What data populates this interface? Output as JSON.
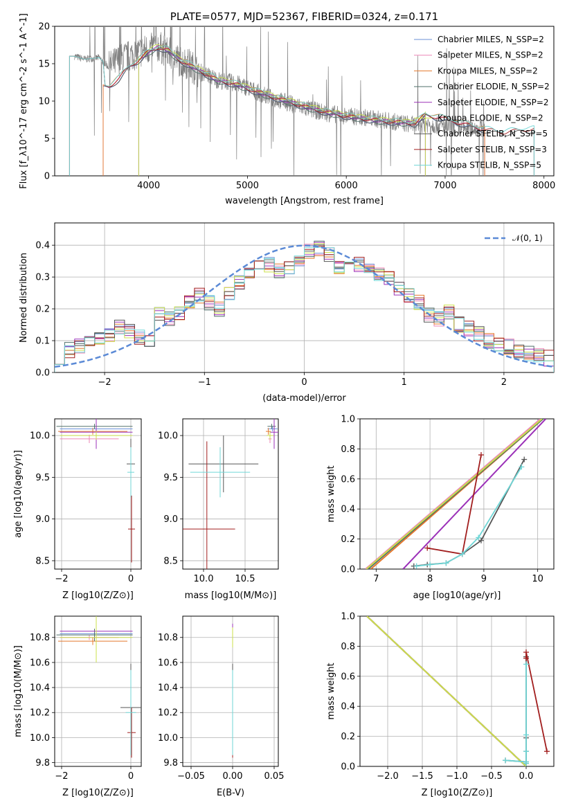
{
  "colors": {
    "chabrier_miles": "#6a8fd6",
    "salpeter_miles": "#ec86b6",
    "kroupa_miles": "#e4782c",
    "chabrier_elodie": "#4f6f6a",
    "salpeter_elodie": "#9b30b8",
    "kroupa_elodie": "#cbe04a",
    "chabrier_stelib": "#555555",
    "salpeter_stelib": "#a11d1d",
    "kroupa_stelib": "#6fd6d6",
    "data_gray": "#7f7f7f",
    "normal_curve": "#5b8ad6",
    "grid": "#b0b0b0"
  },
  "chart_data": [
    {
      "id": "spectrum",
      "type": "line",
      "title": "PLATE=0577, MJD=52367, FIBERID=0324, z=0.171",
      "xlabel": "wavelength [Angstrom, rest frame]",
      "ylabel": "Flux [f_λ10^-17 erg cm^-2 s^-1 A^-1]",
      "xlim": [
        3050,
        8100
      ],
      "ylim": [
        0,
        20
      ],
      "xticks": [
        "4000",
        "5000",
        "6000",
        "7000",
        "8000"
      ],
      "yticks": [
        "0",
        "5",
        "10",
        "15",
        "20"
      ],
      "grid": false,
      "legend_position": "top-right",
      "legend": [
        "Chabrier MILES, N_SSP=2",
        "Salpeter MILES, N_SSP=2",
        "Kroupa MILES, N_SSP=2",
        "Chabrier ELODIE, N_SSP=2",
        "Salpeter ELODIE, N_SSP=2",
        "Kroupa ELODIE, N_SSP=2",
        "Chabrier STELIB, N_SSP=5",
        "Salpeter STELIB, N_SSP=3",
        "Kroupa STELIB, N_SSP=5"
      ],
      "data_wavelength": [
        3250,
        3350,
        3500,
        3600,
        3700,
        3800,
        3900,
        4000,
        4100,
        4200,
        4300,
        4400,
        4500,
        4600,
        4700,
        4800,
        4900,
        5000,
        5200,
        5400,
        5600,
        5800,
        6000,
        6200,
        6400,
        6600,
        6700,
        6800,
        7000,
        7200,
        7400
      ],
      "data_flux": [
        16.0,
        15.6,
        15.8,
        14.5,
        15.5,
        16.0,
        16.5,
        17.0,
        17.3,
        16.5,
        15.5,
        15.0,
        14.0,
        13.5,
        12.8,
        12.6,
        12.3,
        11.8,
        10.6,
        9.8,
        9.0,
        8.4,
        8.0,
        7.8,
        7.4,
        7.0,
        6.8,
        7.0,
        6.6,
        6.4,
        6.3
      ],
      "model_wavelength": [
        3600,
        3700,
        3800,
        3900,
        4000,
        4100,
        4200,
        4300,
        4500,
        4700,
        4900,
        5000,
        5200,
        5400,
        5600,
        5800,
        6000,
        6200,
        6400,
        6600,
        6700,
        6800,
        7000,
        7200,
        7400,
        7600,
        7800
      ],
      "model_flux": [
        12.0,
        13.0,
        14.6,
        15.5,
        16.6,
        17.2,
        16.8,
        15.6,
        14.2,
        12.8,
        12.2,
        11.7,
        10.8,
        10.0,
        9.2,
        8.5,
        8.0,
        7.6,
        7.3,
        7.1,
        7.0,
        8.2,
        7.6,
        6.9,
        6.2,
        5.8,
        6.2
      ],
      "model_ranges": {
        "miles": [
          3540,
          7400
        ],
        "elodie": [
          3900,
          6800
        ],
        "stelib": [
          3200,
          7900
        ]
      }
    },
    {
      "id": "residuals",
      "type": "histogram",
      "xlabel": "(data-model)/error",
      "ylabel": "Normed distribution",
      "xlim": [
        -2.5,
        2.5
      ],
      "ylim": [
        0,
        0.47
      ],
      "xticks": [
        "−2",
        "−1",
        "0",
        "1",
        "2"
      ],
      "yticks": [
        "0.0",
        "0.1",
        "0.2",
        "0.3",
        "0.4"
      ],
      "grid": true,
      "legend_position": "top-right",
      "legend": [
        "𝒩(0, 1)"
      ],
      "bin_width": 0.1,
      "bin_start": -2.5,
      "bin_values": [
        0.05,
        0.07,
        0.08,
        0.09,
        0.1,
        0.12,
        0.14,
        0.13,
        0.11,
        0.1,
        0.18,
        0.17,
        0.19,
        0.22,
        0.24,
        0.22,
        0.2,
        0.25,
        0.28,
        0.31,
        0.33,
        0.34,
        0.32,
        0.33,
        0.36,
        0.38,
        0.39,
        0.37,
        0.33,
        0.36,
        0.34,
        0.32,
        0.31,
        0.3,
        0.26,
        0.24,
        0.22,
        0.18,
        0.17,
        0.19,
        0.15,
        0.14,
        0.12,
        0.1,
        0.09,
        0.08,
        0.07,
        0.06,
        0.05,
        0.045
      ],
      "normal_curve": {
        "mean": 0,
        "std": 1
      }
    },
    {
      "id": "age_vs_Z",
      "type": "errorbar",
      "xlabel": "Z [log10(Z/Z⊙)]",
      "ylabel": "age  [log10(age/yr)]",
      "xlim": [
        -2.2,
        0.3
      ],
      "ylim": [
        8.4,
        10.2
      ],
      "xticks": [
        "−2",
        "0"
      ],
      "yticks": [
        "8.5",
        "9.0",
        "9.5",
        "10.0"
      ],
      "grid": true,
      "points": [
        {
          "series": "chabrier_miles",
          "x": -1.0,
          "y": 10.08,
          "xerr": 1.05,
          "yerr": 0.03
        },
        {
          "series": "salpeter_miles",
          "x": -1.2,
          "y": 9.96,
          "xerr": 0.85,
          "yerr": 0.05
        },
        {
          "series": "kroupa_miles",
          "x": -1.1,
          "y": 10.05,
          "xerr": 1.0,
          "yerr": 0.04
        },
        {
          "series": "chabrier_elodie",
          "x": -1.05,
          "y": 10.11,
          "xerr": 1.1,
          "yerr": 0.03
        },
        {
          "series": "salpeter_elodie",
          "x": -1.0,
          "y": 10.04,
          "xerr": 1.05,
          "yerr": 0.2
        },
        {
          "series": "kroupa_elodie",
          "x": -1.0,
          "y": 10.0,
          "xerr": 1.05,
          "yerr": 0.05
        },
        {
          "series": "chabrier_stelib",
          "x": 0.0,
          "y": 9.66,
          "xerr": 0.12,
          "yerr": 0.3
        },
        {
          "series": "salpeter_stelib",
          "x": 0.02,
          "y": 8.88,
          "xerr": 0.1,
          "yerr": 0.4
        },
        {
          "series": "kroupa_stelib",
          "x": 0.0,
          "y": 9.56,
          "xerr": 0.1,
          "yerr": 0.3
        }
      ]
    },
    {
      "id": "age_vs_mass",
      "type": "errorbar",
      "xlabel": "mass [log10(M/M⊙)]",
      "ylabel": "",
      "xlim": [
        9.75,
        10.9
      ],
      "ylim": [
        8.4,
        10.2
      ],
      "xticks": [
        "10.0",
        "10.5"
      ],
      "yticks": [
        "8.5",
        "9.0",
        "9.5",
        "10.0"
      ],
      "grid": true,
      "points": [
        {
          "series": "chabrier_miles",
          "x": 10.83,
          "y": 10.08,
          "xerr": 0.06,
          "yerr": 0.03
        },
        {
          "series": "salpeter_miles",
          "x": 10.8,
          "y": 9.96,
          "xerr": 0.02,
          "yerr": 0.05
        },
        {
          "series": "kroupa_miles",
          "x": 10.78,
          "y": 10.05,
          "xerr": 0.03,
          "yerr": 0.04
        },
        {
          "series": "chabrier_elodie",
          "x": 10.82,
          "y": 10.11,
          "xerr": 0.05,
          "yerr": 0.03
        },
        {
          "series": "salpeter_elodie",
          "x": 10.85,
          "y": 10.04,
          "xerr": 0.05,
          "yerr": 0.2
        },
        {
          "series": "kroupa_elodie",
          "x": 10.8,
          "y": 10.0,
          "xerr": 0.04,
          "yerr": 0.05
        },
        {
          "series": "chabrier_stelib",
          "x": 10.24,
          "y": 9.66,
          "xerr": 0.42,
          "yerr": 0.34
        },
        {
          "series": "salpeter_stelib",
          "x": 10.04,
          "y": 8.88,
          "xerr": 0.34,
          "yerr": 1.05
        },
        {
          "series": "kroupa_stelib",
          "x": 10.2,
          "y": 9.56,
          "xerr": 0.36,
          "yerr": 0.3
        }
      ]
    },
    {
      "id": "massweight_vs_age",
      "type": "line",
      "xlabel": "age  [log10(age/yr)]",
      "ylabel": "mass weight",
      "xlim": [
        6.7,
        10.3
      ],
      "ylim": [
        0,
        1.0
      ],
      "xticks": [
        "7",
        "8",
        "9",
        "10"
      ],
      "yticks": [
        "0.0",
        "0.2",
        "0.4",
        "0.6",
        "0.8",
        "1.0"
      ],
      "grid": true,
      "series": [
        {
          "key": "chabrier_miles",
          "x": [
            6.85,
            10.1
          ],
          "y": [
            0.0,
            1.0
          ]
        },
        {
          "key": "salpeter_miles",
          "x": [
            6.8,
            10.05
          ],
          "y": [
            0.0,
            1.0
          ]
        },
        {
          "key": "kroupa_miles",
          "x": [
            6.9,
            10.1
          ],
          "y": [
            0.0,
            1.0
          ]
        },
        {
          "key": "chabrier_elodie",
          "x": [
            6.85,
            10.1
          ],
          "y": [
            0.0,
            1.0
          ]
        },
        {
          "key": "salpeter_elodie",
          "x": [
            7.5,
            10.15
          ],
          "y": [
            0.0,
            1.0
          ]
        },
        {
          "key": "kroupa_elodie",
          "x": [
            6.82,
            10.08
          ],
          "y": [
            0.0,
            1.0
          ]
        },
        {
          "key": "chabrier_stelib",
          "x": [
            7.7,
            7.95,
            8.3,
            8.6,
            8.95,
            9.75
          ],
          "y": [
            0.02,
            0.03,
            0.04,
            0.1,
            0.19,
            0.73
          ]
        },
        {
          "key": "salpeter_stelib",
          "x": [
            7.95,
            8.6,
            8.95
          ],
          "y": [
            0.14,
            0.1,
            0.76
          ]
        },
        {
          "key": "kroupa_stelib",
          "x": [
            7.75,
            8.0,
            8.3,
            8.6,
            8.9,
            9.7
          ],
          "y": [
            0.02,
            0.03,
            0.04,
            0.1,
            0.21,
            0.68
          ]
        }
      ]
    },
    {
      "id": "mass_vs_Z",
      "type": "errorbar",
      "xlabel": "Z [log10(Z/Z⊙)]",
      "ylabel": "mass [log10(M/M⊙)]",
      "xlim": [
        -2.2,
        0.3
      ],
      "ylim": [
        9.77,
        10.97
      ],
      "xticks": [
        "−2",
        "0"
      ],
      "yticks": [
        "9.8",
        "10.0",
        "10.2",
        "10.4",
        "10.6",
        "10.8"
      ],
      "grid": true,
      "points": [
        {
          "series": "chabrier_miles",
          "x": -1.0,
          "y": 10.83,
          "xerr": 1.05,
          "yerr": 0.06
        },
        {
          "series": "salpeter_miles",
          "x": -1.2,
          "y": 10.8,
          "xerr": 0.85,
          "yerr": 0.02
        },
        {
          "series": "kroupa_miles",
          "x": -1.1,
          "y": 10.77,
          "xerr": 1.0,
          "yerr": 0.03
        },
        {
          "series": "chabrier_elodie",
          "x": -1.05,
          "y": 10.82,
          "xerr": 1.1,
          "yerr": 0.05
        },
        {
          "series": "salpeter_elodie",
          "x": -1.0,
          "y": 10.85,
          "xerr": 1.05,
          "yerr": 0.06
        },
        {
          "series": "kroupa_elodie",
          "x": -1.0,
          "y": 10.8,
          "xerr": 1.05,
          "yerr": 0.2
        },
        {
          "series": "chabrier_stelib",
          "x": 0.0,
          "y": 10.24,
          "xerr": 0.3,
          "yerr": 0.35
        },
        {
          "series": "salpeter_stelib",
          "x": 0.02,
          "y": 10.04,
          "xerr": 0.12,
          "yerr": 0.2
        },
        {
          "series": "kroupa_stelib",
          "x": 0.0,
          "y": 10.2,
          "xerr": 0.15,
          "yerr": 0.34
        }
      ]
    },
    {
      "id": "mass_vs_EBV",
      "type": "errorbar",
      "xlabel": "E(B-V)",
      "ylabel": "",
      "xlim": [
        -0.06,
        0.055
      ],
      "ylim": [
        9.77,
        10.97
      ],
      "xticks": [
        "−0.05",
        "0.00",
        "0.05"
      ],
      "yticks": [
        "9.8",
        "10.0",
        "10.2",
        "10.4",
        "10.6",
        "10.8"
      ],
      "grid": true,
      "points": [
        {
          "series": "chabrier_miles",
          "x": 0.0,
          "y": 10.83,
          "xerr": 0.0,
          "yerr": 0.06
        },
        {
          "series": "salpeter_miles",
          "x": 0.0,
          "y": 10.8,
          "xerr": 0.0,
          "yerr": 0.02
        },
        {
          "series": "kroupa_miles",
          "x": 0.0,
          "y": 10.77,
          "xerr": 0.0,
          "yerr": 0.03
        },
        {
          "series": "chabrier_elodie",
          "x": 0.0,
          "y": 10.82,
          "xerr": 0.0,
          "yerr": 0.05
        },
        {
          "series": "salpeter_elodie",
          "x": 0.0,
          "y": 10.85,
          "xerr": 0.0,
          "yerr": 0.06
        },
        {
          "series": "kroupa_elodie",
          "x": 0.0,
          "y": 10.8,
          "xerr": 0.0,
          "yerr": 0.08
        },
        {
          "series": "chabrier_stelib",
          "x": 0.0,
          "y": 10.24,
          "xerr": 0.0,
          "yerr": 0.35
        },
        {
          "series": "salpeter_stelib",
          "x": 0.0,
          "y": 10.04,
          "xerr": 0.0,
          "yerr": 0.2
        },
        {
          "series": "kroupa_stelib",
          "x": 0.0,
          "y": 10.2,
          "xerr": 0.0,
          "yerr": 0.34
        }
      ]
    },
    {
      "id": "massweight_vs_Z",
      "type": "line",
      "xlabel": "Z [log10(Z/Z⊙)]",
      "ylabel": "mass weight",
      "xlim": [
        -2.4,
        0.4
      ],
      "ylim": [
        0,
        1.0
      ],
      "xticks": [
        "−2.0",
        "−1.5",
        "−1.0",
        "−0.5",
        "0.0"
      ],
      "yticks": [
        "0.0",
        "0.2",
        "0.4",
        "0.6",
        "0.8",
        "1.0"
      ],
      "grid": true,
      "series": [
        {
          "key": "chabrier_miles",
          "x": [
            -2.3,
            0.0
          ],
          "y": [
            1.0,
            0.0
          ]
        },
        {
          "key": "salpeter_miles",
          "x": [
            -2.3,
            0.0
          ],
          "y": [
            1.0,
            0.0
          ]
        },
        {
          "key": "kroupa_miles",
          "x": [
            -2.3,
            0.0
          ],
          "y": [
            1.0,
            0.0
          ]
        },
        {
          "key": "chabrier_elodie",
          "x": [
            -2.3,
            0.0
          ],
          "y": [
            1.0,
            0.0
          ]
        },
        {
          "key": "salpeter_elodie",
          "x": [
            -2.3,
            0.0
          ],
          "y": [
            1.0,
            0.0
          ]
        },
        {
          "key": "kroupa_elodie",
          "x": [
            -2.3,
            0.0
          ],
          "y": [
            1.0,
            0.0
          ]
        },
        {
          "key": "chabrier_stelib",
          "x": [
            -0.3,
            0.0,
            0.0,
            0.0,
            0.0,
            0.0
          ],
          "y": [
            0.04,
            0.03,
            0.02,
            0.19,
            0.73,
            0.1
          ]
        },
        {
          "key": "salpeter_stelib",
          "x": [
            0.3,
            0.0,
            0.0
          ],
          "y": [
            0.1,
            0.76,
            0.72
          ]
        },
        {
          "key": "kroupa_stelib",
          "x": [
            -0.3,
            0.0,
            0.0,
            0.0,
            0.0,
            0.0
          ],
          "y": [
            0.04,
            0.03,
            0.02,
            0.21,
            0.68,
            0.1
          ]
        }
      ]
    }
  ]
}
